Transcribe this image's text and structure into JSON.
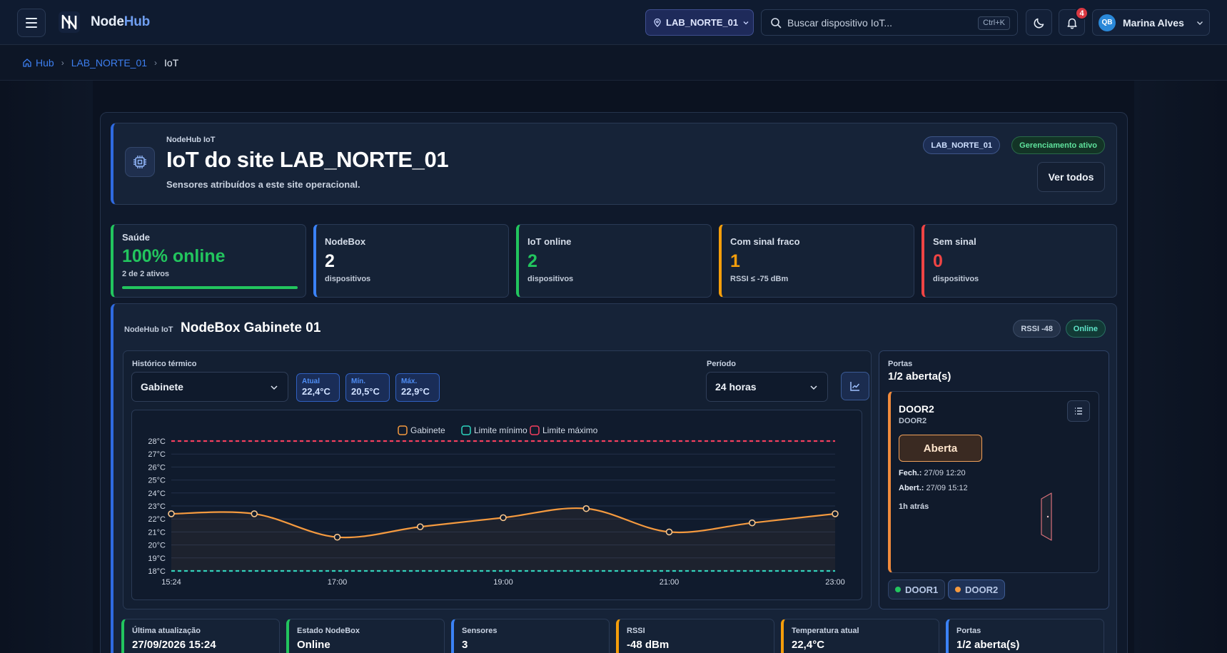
{
  "app": {
    "brand_part1": "Node",
    "brand_part2": "Hub"
  },
  "topbar": {
    "site": "LAB_NORTE_01",
    "search_placeholder": "Buscar dispositivo IoT...",
    "search_shortcut": "Ctrl+K",
    "notifications_count": "4",
    "user_initials": "QB",
    "user_name": "Marina Alves"
  },
  "breadcrumb": [
    "Hub",
    "LAB_NORTE_01",
    "IoT"
  ],
  "hero": {
    "kicker": "NodeHub IoT",
    "title": "IoT do site LAB_NORTE_01",
    "subtitle": "Sensores atribuídos a este site operacional.",
    "site_pill": "LAB_NORTE_01",
    "status_pill": "Gerenciamento ativo",
    "view_all": "Ver todos"
  },
  "stats": [
    {
      "label": "Saúde",
      "value": "100% online",
      "sub": "2 de 2 ativos",
      "color": "#22c55e",
      "progress": 1.0
    },
    {
      "label": "NodeBox",
      "value": "2",
      "sub": "dispositivos",
      "color": "#3b82f6"
    },
    {
      "label": "IoT online",
      "value": "2",
      "sub": "dispositivos",
      "color": "#22c55e"
    },
    {
      "label": "Com sinal fraco",
      "value": "1",
      "sub": "RSSI ≤ -75 dBm",
      "color": "#f59e0b"
    },
    {
      "label": "Sem sinal",
      "value": "0",
      "sub": "dispositivos",
      "color": "#ef4444"
    }
  ],
  "nodebox": {
    "kicker": "NodeHub IoT",
    "title": "NodeBox Gabinete 01",
    "rssi_pill": "RSSI -48",
    "status_pill": "Online",
    "history_label": "Histórico térmico",
    "sensor_select": "Gabinete",
    "current": {
      "label": "Atual",
      "value": "22,4°C"
    },
    "min": {
      "label": "Mín.",
      "value": "20,5°C"
    },
    "max": {
      "label": "Máx.",
      "value": "22,9°C"
    },
    "period_label": "Período",
    "period_select": "24 horas"
  },
  "chart_data": {
    "type": "line",
    "legend": [
      "Gabinete",
      "Limite mínimo",
      "Limite máximo"
    ],
    "colors": {
      "Gabinete": "#f59a3f",
      "Limite mínimo": "#2dd4bf",
      "Limite máximo": "#f43f5e"
    },
    "x_ticks": [
      "15:24",
      "17:00",
      "19:00",
      "21:00",
      "23:00"
    ],
    "y_ticks": [
      "18°C",
      "19°C",
      "20°C",
      "21°C",
      "22°C",
      "23°C",
      "24°C",
      "25°C",
      "26°C",
      "27°C",
      "28°C"
    ],
    "ylim": [
      18,
      28
    ],
    "series": [
      {
        "name": "Gabinete",
        "x": [
          0,
          1,
          2,
          3,
          4,
          5,
          6,
          7,
          8
        ],
        "values": [
          22.4,
          22.4,
          20.6,
          21.4,
          22.1,
          22.8,
          21.0,
          21.7,
          22.4
        ]
      },
      {
        "name": "Limite mínimo",
        "constant": 18
      },
      {
        "name": "Limite máximo",
        "constant": 28
      }
    ]
  },
  "ports": {
    "label": "Portas",
    "value": "1/2 aberta(s)",
    "door_name": "DOOR2",
    "door_sub": "DOOR2",
    "door_state": "Aberta",
    "closed_label": "Fech.:",
    "closed_value": "27/09 12:20",
    "opened_label": "Abert.:",
    "opened_value": "27/09 15:12",
    "ago": "1h atrás",
    "chips": [
      {
        "label": "DOOR1",
        "color": "#22c55e"
      },
      {
        "label": "DOOR2",
        "color": "#f59a3f"
      }
    ]
  },
  "info_cards": [
    {
      "label": "Última atualização",
      "value": "27/09/2026 15:24",
      "color": "#22c55e"
    },
    {
      "label": "Estado NodeBox",
      "value": "Online",
      "color": "#22c55e"
    },
    {
      "label": "Sensores",
      "value": "3",
      "color": "#3b82f6"
    },
    {
      "label": "RSSI",
      "value": "-48 dBm",
      "color": "#f59e0b"
    },
    {
      "label": "Temperatura atual",
      "value": "22,4°C",
      "color": "#f59e0b"
    },
    {
      "label": "Portas",
      "value": "1/2 aberta(s)",
      "color": "#3b82f6"
    }
  ]
}
